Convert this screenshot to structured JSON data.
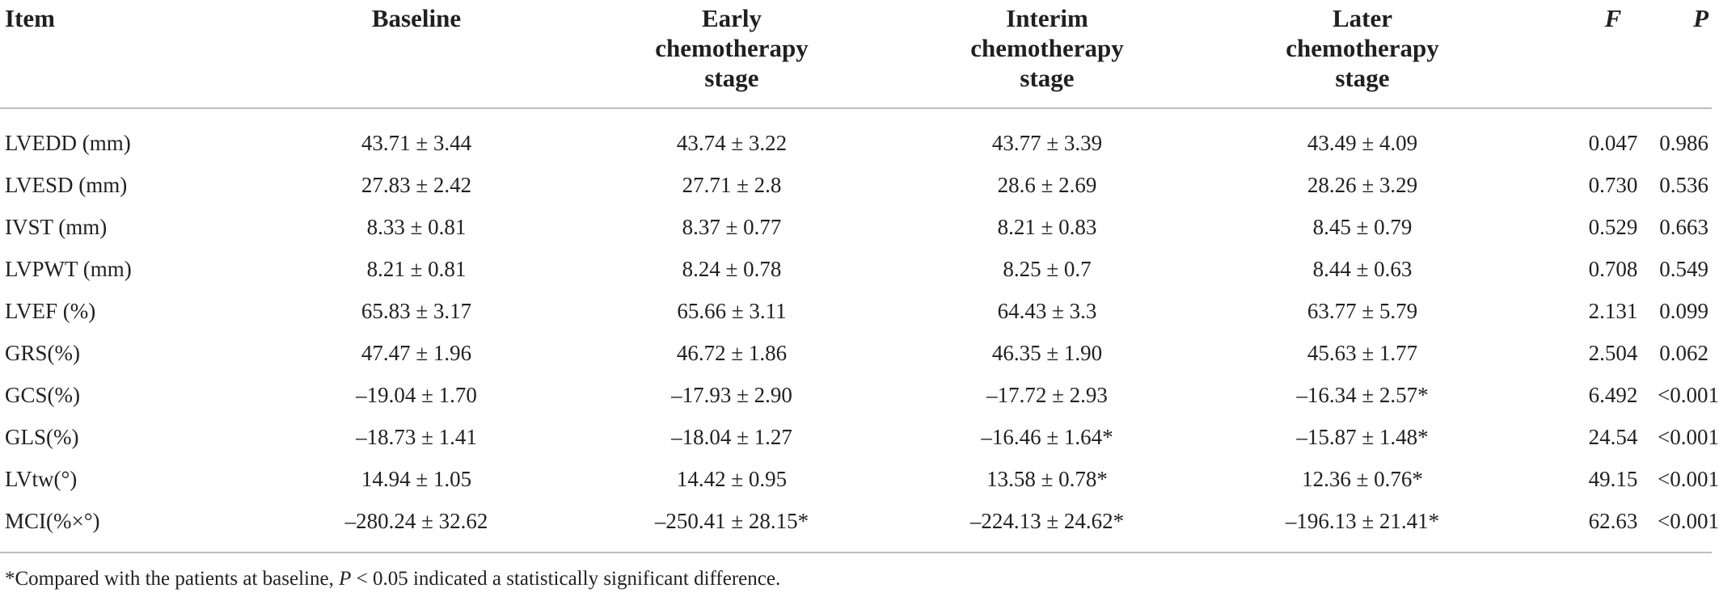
{
  "headers": {
    "item": "Item",
    "baseline": "Baseline",
    "early": [
      "Early",
      "chemotherapy",
      "stage"
    ],
    "interim": [
      "Interim",
      "chemotherapy",
      "stage"
    ],
    "later": [
      "Later",
      "chemotherapy",
      "stage"
    ],
    "f": "F",
    "p": "P"
  },
  "rows": [
    {
      "item": "LVEDD (mm)",
      "baseline": "43.71 ± 3.44",
      "early": "43.74 ± 3.22",
      "interim": "43.77 ± 3.39",
      "later": "43.49 ± 4.09",
      "f": "0.047",
      "p": "0.986"
    },
    {
      "item": "LVESD (mm)",
      "baseline": "27.83 ± 2.42",
      "early": "27.71 ± 2.8",
      "interim": "28.6 ± 2.69",
      "later": "28.26 ± 3.29",
      "f": "0.730",
      "p": "0.536"
    },
    {
      "item": "IVST (mm)",
      "baseline": "8.33 ± 0.81",
      "early": "8.37 ± 0.77",
      "interim": "8.21 ± 0.83",
      "later": "8.45 ± 0.79",
      "f": "0.529",
      "p": "0.663"
    },
    {
      "item": "LVPWT (mm)",
      "baseline": "8.21 ± 0.81",
      "early": "8.24 ± 0.78",
      "interim": "8.25 ± 0.7",
      "later": "8.44 ± 0.63",
      "f": "0.708",
      "p": "0.549"
    },
    {
      "item": "LVEF (%)",
      "baseline": "65.83 ± 3.17",
      "early": "65.66 ± 3.11",
      "interim": "64.43 ± 3.3",
      "later": "63.77 ± 5.79",
      "f": "2.131",
      "p": "0.099"
    },
    {
      "item": "GRS(%)",
      "baseline": "47.47 ± 1.96",
      "early": "46.72 ± 1.86",
      "interim": "46.35 ± 1.90",
      "later": "45.63 ± 1.77",
      "f": "2.504",
      "p": "0.062"
    },
    {
      "item": "GCS(%)",
      "baseline": "–19.04 ± 1.70",
      "early": "–17.93 ± 2.90",
      "interim": "–17.72 ± 2.93",
      "later": "–16.34 ± 2.57*",
      "f": "6.492",
      "p": "<0.001"
    },
    {
      "item": "GLS(%)",
      "baseline": "–18.73 ± 1.41",
      "early": "–18.04 ± 1.27",
      "interim": "–16.46 ± 1.64*",
      "later": "–15.87 ± 1.48*",
      "f": "24.54",
      "p": "<0.001"
    },
    {
      "item": "LVtw(°)",
      "baseline": "14.94 ± 1.05",
      "early": "14.42 ± 0.95",
      "interim": "13.58 ± 0.78*",
      "later": "12.36 ± 0.76*",
      "f": "49.15",
      "p": "<0.001"
    },
    {
      "item": "MCI(%×°)",
      "baseline": "–280.24 ± 32.62",
      "early": "–250.41 ± 28.15*",
      "interim": "–224.13 ± 24.62*",
      "later": "–196.13 ± 21.41*",
      "f": "62.63",
      "p": "<0.001"
    }
  ],
  "footnote": {
    "before": "*Compared with the patients at baseline, ",
    "p_symbol": "P",
    "after": " < 0.05 indicated a statistically significant difference."
  }
}
